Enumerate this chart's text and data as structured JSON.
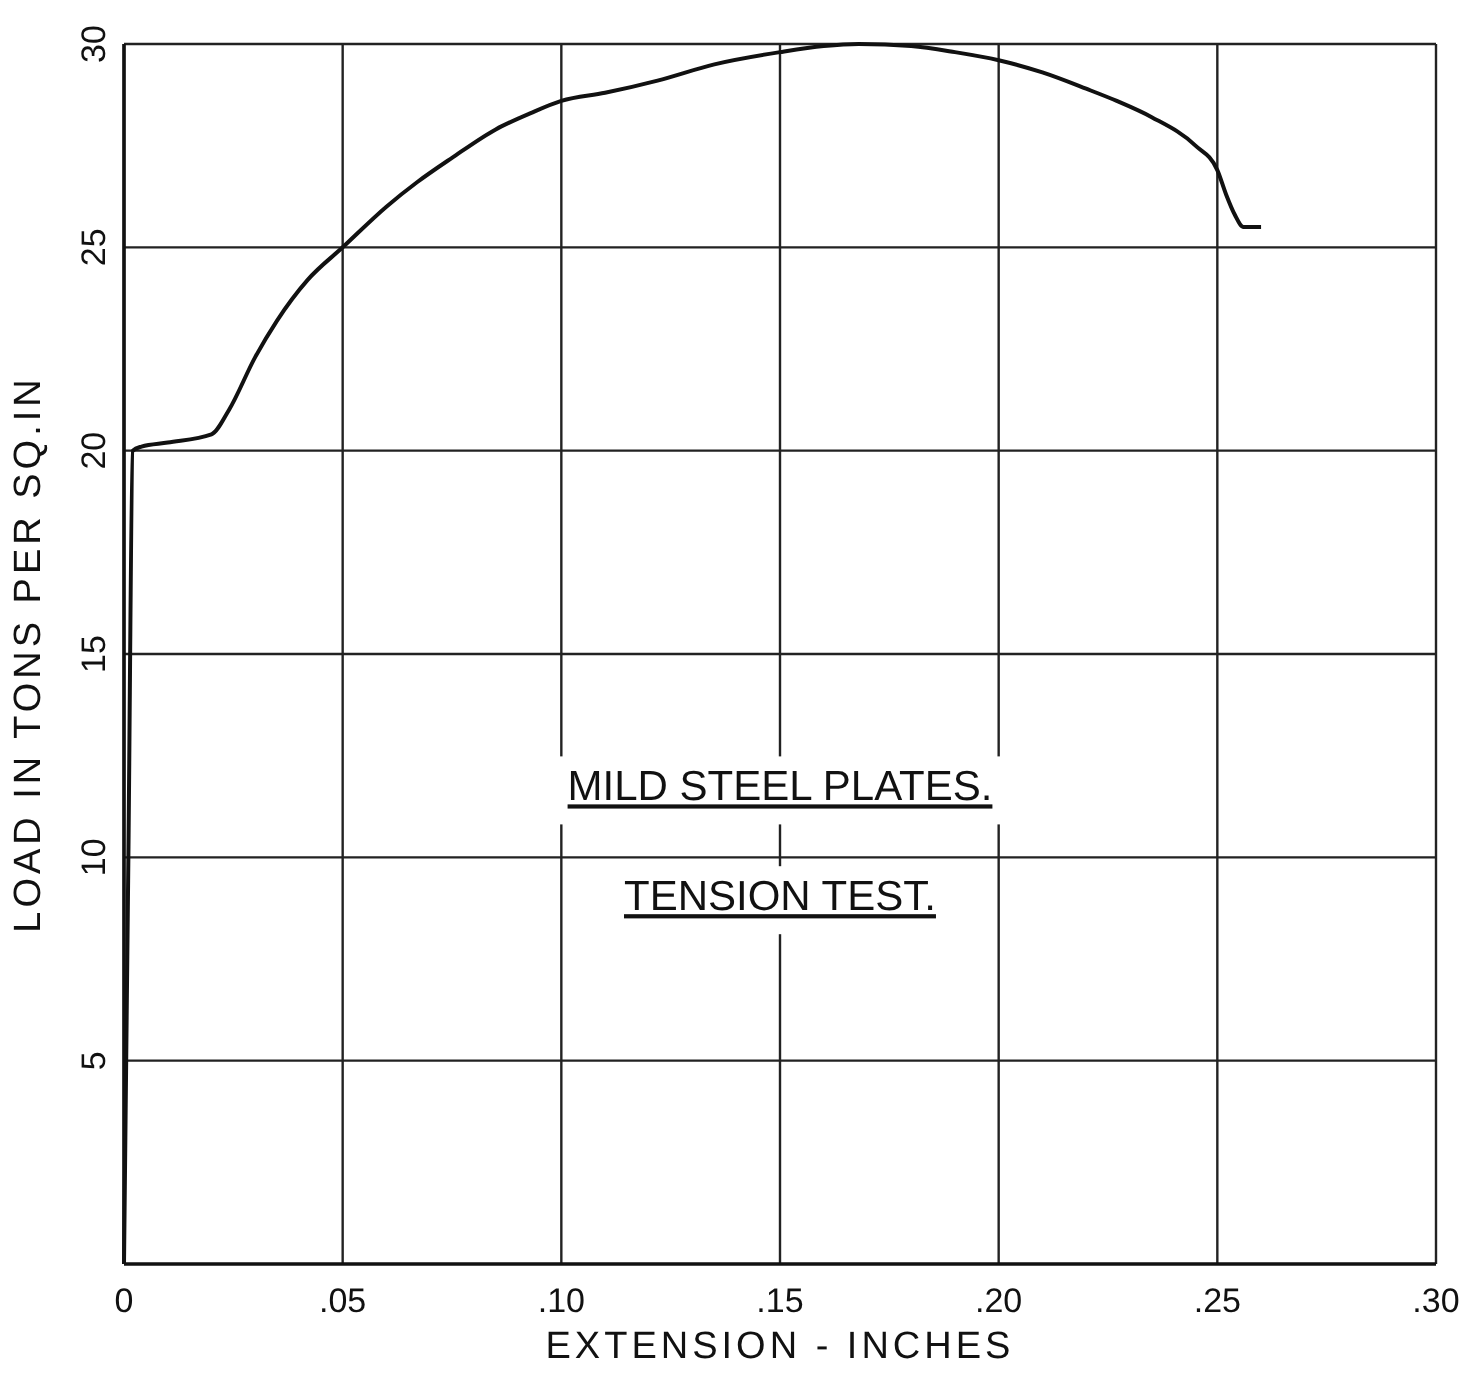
{
  "chart_data": {
    "type": "line",
    "xlabel": "EXTENSION - INCHES",
    "ylabel": "LOAD IN TONS PER SQ.IN",
    "annotations": [
      "MILD STEEL PLATES.",
      "TENSION TEST."
    ],
    "x": [
      0,
      0.001,
      0.002,
      0.004,
      0.01,
      0.02,
      0.024,
      0.03,
      0.035,
      0.042,
      0.05,
      0.06,
      0.067,
      0.075,
      0.085,
      0.093,
      0.1,
      0.11,
      0.122,
      0.135,
      0.15,
      0.16,
      0.168,
      0.18,
      0.19,
      0.2,
      0.21,
      0.22,
      0.227,
      0.235,
      0.245,
      0.25,
      0.252,
      0.254,
      0.256,
      0.26
    ],
    "series": [
      {
        "color": "#111111",
        "values": [
          0,
          10,
          20,
          20.1,
          20.2,
          20.4,
          21,
          22.3,
          23.2,
          24.2,
          25,
          26,
          26.6,
          27.2,
          27.9,
          28.3,
          28.6,
          28.8,
          29.1,
          29.5,
          29.8,
          29.95,
          30,
          29.95,
          29.8,
          29.6,
          29.3,
          28.9,
          28.6,
          28.2,
          27.5,
          26.9,
          26.3,
          25.8,
          25.5,
          25.5
        ]
      }
    ],
    "xlim": [
      0,
      0.3
    ],
    "ylim": [
      0,
      30
    ],
    "xticks": [
      0,
      {
        "value": 0.05,
        "label": ".05"
      },
      {
        "value": 0.1,
        "label": ".10"
      },
      {
        "value": 0.15,
        "label": ".15"
      },
      {
        "value": 0.2,
        "label": ".20"
      },
      {
        "value": 0.25,
        "label": ".25"
      },
      {
        "value": 0.3,
        "label": ".30"
      }
    ],
    "yticks": [
      5,
      10,
      15,
      20,
      25,
      30
    ],
    "grid": true,
    "marker": "none",
    "line_style": "solid"
  }
}
